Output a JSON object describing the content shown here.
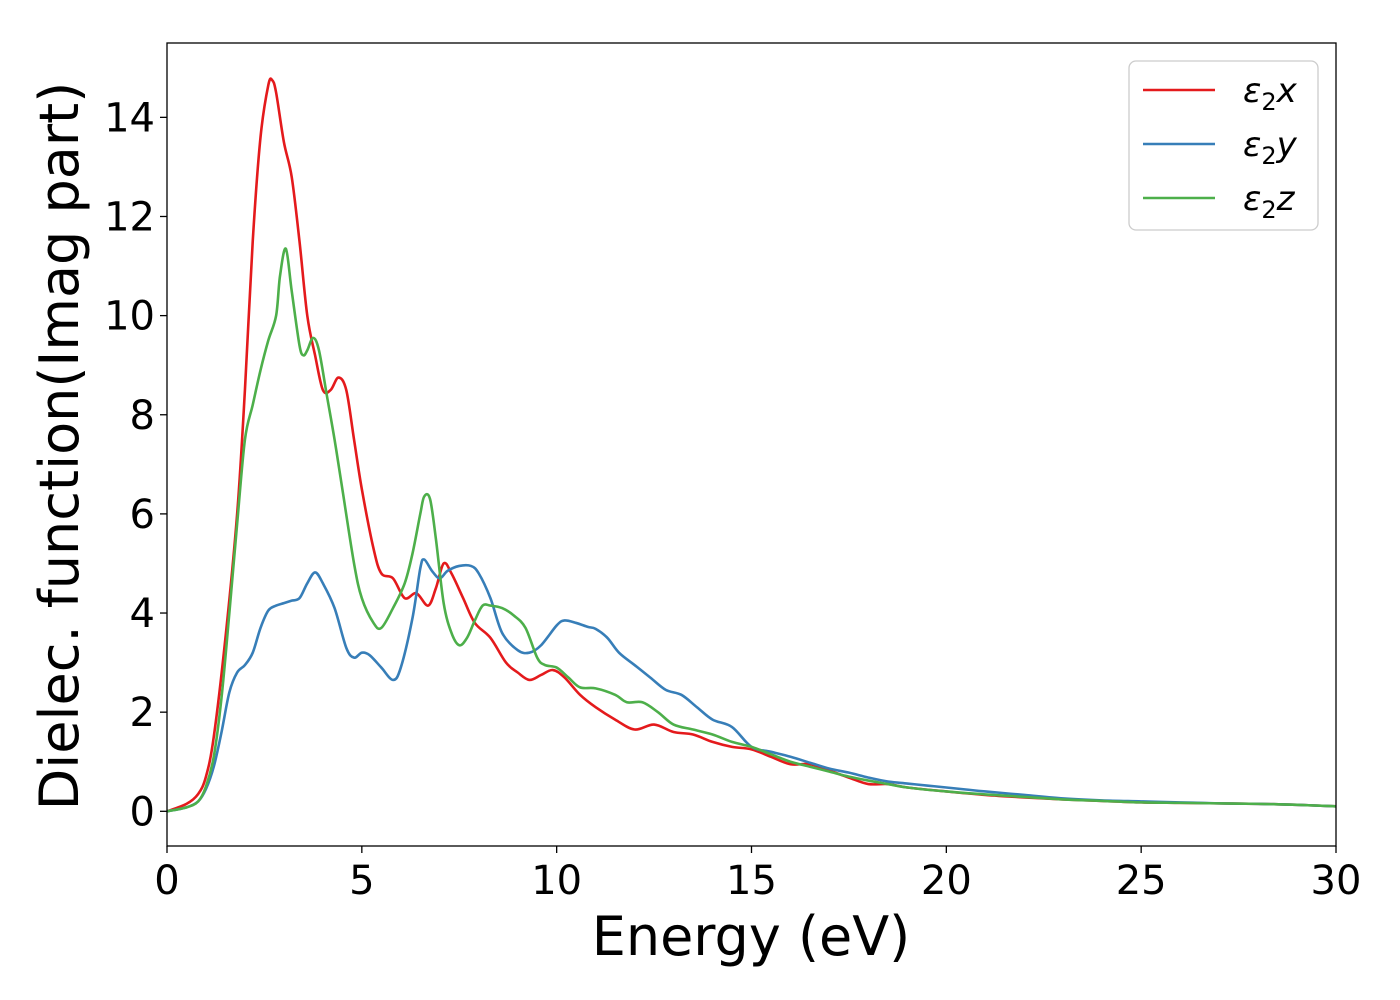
{
  "chart_data": {
    "type": "line",
    "xlabel": "Energy (eV)",
    "ylabel": "Dielec. function(Imag part)",
    "xlim": [
      0,
      30
    ],
    "ylim": [
      -0.7,
      15.5
    ],
    "xticks": [
      "0",
      "5",
      "10",
      "15",
      "20",
      "25",
      "30"
    ],
    "yticks": [
      "0",
      "2",
      "4",
      "6",
      "8",
      "10",
      "12",
      "14"
    ],
    "grid": false,
    "legend_position": "top-right",
    "series": [
      {
        "name": "ε2x",
        "legend": {
          "base": "ε",
          "sub": "2",
          "var": "x"
        },
        "color": "#e41a1c",
        "points": [
          [
            0,
            0
          ],
          [
            0.5,
            0.15
          ],
          [
            0.8,
            0.35
          ],
          [
            1.0,
            0.7
          ],
          [
            1.2,
            1.5
          ],
          [
            1.5,
            3.5
          ],
          [
            1.8,
            6.0
          ],
          [
            2.0,
            8.5
          ],
          [
            2.2,
            11.5
          ],
          [
            2.4,
            13.6
          ],
          [
            2.6,
            14.65
          ],
          [
            2.7,
            14.75
          ],
          [
            2.8,
            14.5
          ],
          [
            3.0,
            13.5
          ],
          [
            3.2,
            12.8
          ],
          [
            3.4,
            11.5
          ],
          [
            3.6,
            10.0
          ],
          [
            3.8,
            9.2
          ],
          [
            4.0,
            8.5
          ],
          [
            4.2,
            8.5
          ],
          [
            4.4,
            8.75
          ],
          [
            4.6,
            8.5
          ],
          [
            4.8,
            7.5
          ],
          [
            5.0,
            6.5
          ],
          [
            5.3,
            5.3
          ],
          [
            5.5,
            4.8
          ],
          [
            5.8,
            4.7
          ],
          [
            6.1,
            4.3
          ],
          [
            6.4,
            4.4
          ],
          [
            6.7,
            4.15
          ],
          [
            6.9,
            4.5
          ],
          [
            7.1,
            5.0
          ],
          [
            7.3,
            4.8
          ],
          [
            7.6,
            4.3
          ],
          [
            7.9,
            3.8
          ],
          [
            8.3,
            3.5
          ],
          [
            8.7,
            3.0
          ],
          [
            9.0,
            2.8
          ],
          [
            9.3,
            2.65
          ],
          [
            9.6,
            2.75
          ],
          [
            9.9,
            2.85
          ],
          [
            10.2,
            2.7
          ],
          [
            10.6,
            2.35
          ],
          [
            11.0,
            2.1
          ],
          [
            11.5,
            1.85
          ],
          [
            12.0,
            1.65
          ],
          [
            12.5,
            1.75
          ],
          [
            13.0,
            1.6
          ],
          [
            13.5,
            1.55
          ],
          [
            14.0,
            1.4
          ],
          [
            14.5,
            1.3
          ],
          [
            15.0,
            1.25
          ],
          [
            15.5,
            1.1
          ],
          [
            16.0,
            0.95
          ],
          [
            16.5,
            0.95
          ],
          [
            17.0,
            0.82
          ],
          [
            17.5,
            0.68
          ],
          [
            18.0,
            0.55
          ],
          [
            18.5,
            0.55
          ],
          [
            19.0,
            0.48
          ],
          [
            20.0,
            0.4
          ],
          [
            21.0,
            0.33
          ],
          [
            22.0,
            0.28
          ],
          [
            23.0,
            0.24
          ],
          [
            24.0,
            0.21
          ],
          [
            25.0,
            0.18
          ],
          [
            26.0,
            0.17
          ],
          [
            27.0,
            0.16
          ],
          [
            28.0,
            0.15
          ],
          [
            29.0,
            0.13
          ],
          [
            30.0,
            0.1
          ]
        ]
      },
      {
        "name": "ε2y",
        "legend": {
          "base": "ε",
          "sub": "2",
          "var": "y"
        },
        "color": "#377eb8",
        "points": [
          [
            0,
            0
          ],
          [
            0.5,
            0.08
          ],
          [
            0.8,
            0.2
          ],
          [
            1.0,
            0.45
          ],
          [
            1.2,
            0.9
          ],
          [
            1.4,
            1.6
          ],
          [
            1.6,
            2.4
          ],
          [
            1.8,
            2.8
          ],
          [
            2.0,
            2.95
          ],
          [
            2.2,
            3.2
          ],
          [
            2.4,
            3.7
          ],
          [
            2.6,
            4.05
          ],
          [
            2.8,
            4.15
          ],
          [
            3.0,
            4.2
          ],
          [
            3.2,
            4.25
          ],
          [
            3.4,
            4.3
          ],
          [
            3.6,
            4.6
          ],
          [
            3.8,
            4.82
          ],
          [
            4.0,
            4.6
          ],
          [
            4.3,
            4.1
          ],
          [
            4.6,
            3.3
          ],
          [
            4.8,
            3.1
          ],
          [
            5.0,
            3.2
          ],
          [
            5.2,
            3.15
          ],
          [
            5.5,
            2.9
          ],
          [
            5.8,
            2.65
          ],
          [
            6.0,
            2.9
          ],
          [
            6.3,
            3.9
          ],
          [
            6.5,
            4.9
          ],
          [
            6.6,
            5.08
          ],
          [
            6.8,
            4.85
          ],
          [
            7.0,
            4.7
          ],
          [
            7.2,
            4.85
          ],
          [
            7.5,
            4.95
          ],
          [
            7.8,
            4.95
          ],
          [
            8.0,
            4.8
          ],
          [
            8.3,
            4.3
          ],
          [
            8.6,
            3.6
          ],
          [
            9.0,
            3.25
          ],
          [
            9.3,
            3.2
          ],
          [
            9.6,
            3.35
          ],
          [
            10.0,
            3.75
          ],
          [
            10.2,
            3.85
          ],
          [
            10.5,
            3.8
          ],
          [
            10.8,
            3.72
          ],
          [
            11.0,
            3.68
          ],
          [
            11.3,
            3.5
          ],
          [
            11.6,
            3.2
          ],
          [
            12.0,
            2.95
          ],
          [
            12.4,
            2.7
          ],
          [
            12.8,
            2.45
          ],
          [
            13.2,
            2.35
          ],
          [
            13.6,
            2.1
          ],
          [
            14.0,
            1.85
          ],
          [
            14.5,
            1.7
          ],
          [
            15.0,
            1.3
          ],
          [
            15.5,
            1.2
          ],
          [
            16.0,
            1.1
          ],
          [
            16.5,
            0.98
          ],
          [
            17.0,
            0.86
          ],
          [
            17.5,
            0.78
          ],
          [
            18.0,
            0.68
          ],
          [
            18.5,
            0.6
          ],
          [
            19.0,
            0.56
          ],
          [
            19.5,
            0.52
          ],
          [
            20.0,
            0.48
          ],
          [
            20.5,
            0.44
          ],
          [
            21.0,
            0.4
          ],
          [
            22.0,
            0.33
          ],
          [
            23.0,
            0.26
          ],
          [
            24.0,
            0.22
          ],
          [
            25.0,
            0.2
          ],
          [
            26.0,
            0.18
          ],
          [
            27.0,
            0.16
          ],
          [
            28.0,
            0.15
          ],
          [
            29.0,
            0.13
          ],
          [
            30.0,
            0.1
          ]
        ]
      },
      {
        "name": "ε2z",
        "legend": {
          "base": "ε",
          "sub": "2",
          "var": "z"
        },
        "color": "#4daf4a",
        "points": [
          [
            0,
            0
          ],
          [
            0.5,
            0.08
          ],
          [
            0.8,
            0.2
          ],
          [
            1.0,
            0.5
          ],
          [
            1.2,
            1.1
          ],
          [
            1.4,
            2.3
          ],
          [
            1.6,
            4.0
          ],
          [
            1.8,
            5.8
          ],
          [
            2.0,
            7.5
          ],
          [
            2.2,
            8.2
          ],
          [
            2.4,
            8.9
          ],
          [
            2.6,
            9.5
          ],
          [
            2.8,
            10.0
          ],
          [
            2.9,
            10.8
          ],
          [
            3.05,
            11.35
          ],
          [
            3.2,
            10.5
          ],
          [
            3.4,
            9.4
          ],
          [
            3.5,
            9.2
          ],
          [
            3.6,
            9.3
          ],
          [
            3.75,
            9.55
          ],
          [
            3.9,
            9.3
          ],
          [
            4.1,
            8.4
          ],
          [
            4.3,
            7.5
          ],
          [
            4.5,
            6.5
          ],
          [
            4.8,
            5.0
          ],
          [
            5.0,
            4.3
          ],
          [
            5.3,
            3.8
          ],
          [
            5.5,
            3.7
          ],
          [
            5.8,
            4.1
          ],
          [
            6.1,
            4.6
          ],
          [
            6.3,
            5.2
          ],
          [
            6.5,
            6.0
          ],
          [
            6.6,
            6.35
          ],
          [
            6.75,
            6.3
          ],
          [
            6.9,
            5.5
          ],
          [
            7.1,
            4.2
          ],
          [
            7.3,
            3.6
          ],
          [
            7.5,
            3.35
          ],
          [
            7.7,
            3.5
          ],
          [
            7.9,
            3.85
          ],
          [
            8.1,
            4.15
          ],
          [
            8.3,
            4.15
          ],
          [
            8.6,
            4.1
          ],
          [
            8.9,
            3.95
          ],
          [
            9.2,
            3.7
          ],
          [
            9.5,
            3.1
          ],
          [
            9.7,
            2.95
          ],
          [
            10.0,
            2.9
          ],
          [
            10.3,
            2.7
          ],
          [
            10.6,
            2.5
          ],
          [
            11.0,
            2.48
          ],
          [
            11.5,
            2.35
          ],
          [
            11.8,
            2.2
          ],
          [
            12.2,
            2.2
          ],
          [
            12.6,
            2.0
          ],
          [
            13.0,
            1.75
          ],
          [
            13.5,
            1.65
          ],
          [
            14.0,
            1.55
          ],
          [
            14.5,
            1.4
          ],
          [
            15.0,
            1.3
          ],
          [
            15.5,
            1.15
          ],
          [
            16.0,
            1.0
          ],
          [
            16.5,
            0.9
          ],
          [
            17.0,
            0.8
          ],
          [
            17.5,
            0.7
          ],
          [
            18.0,
            0.62
          ],
          [
            18.5,
            0.55
          ],
          [
            19.0,
            0.48
          ],
          [
            20.0,
            0.4
          ],
          [
            21.0,
            0.34
          ],
          [
            22.0,
            0.29
          ],
          [
            23.0,
            0.24
          ],
          [
            24.0,
            0.21
          ],
          [
            25.0,
            0.18
          ],
          [
            26.0,
            0.17
          ],
          [
            27.0,
            0.16
          ],
          [
            28.0,
            0.15
          ],
          [
            29.0,
            0.13
          ],
          [
            30.0,
            0.1
          ]
        ]
      }
    ]
  }
}
